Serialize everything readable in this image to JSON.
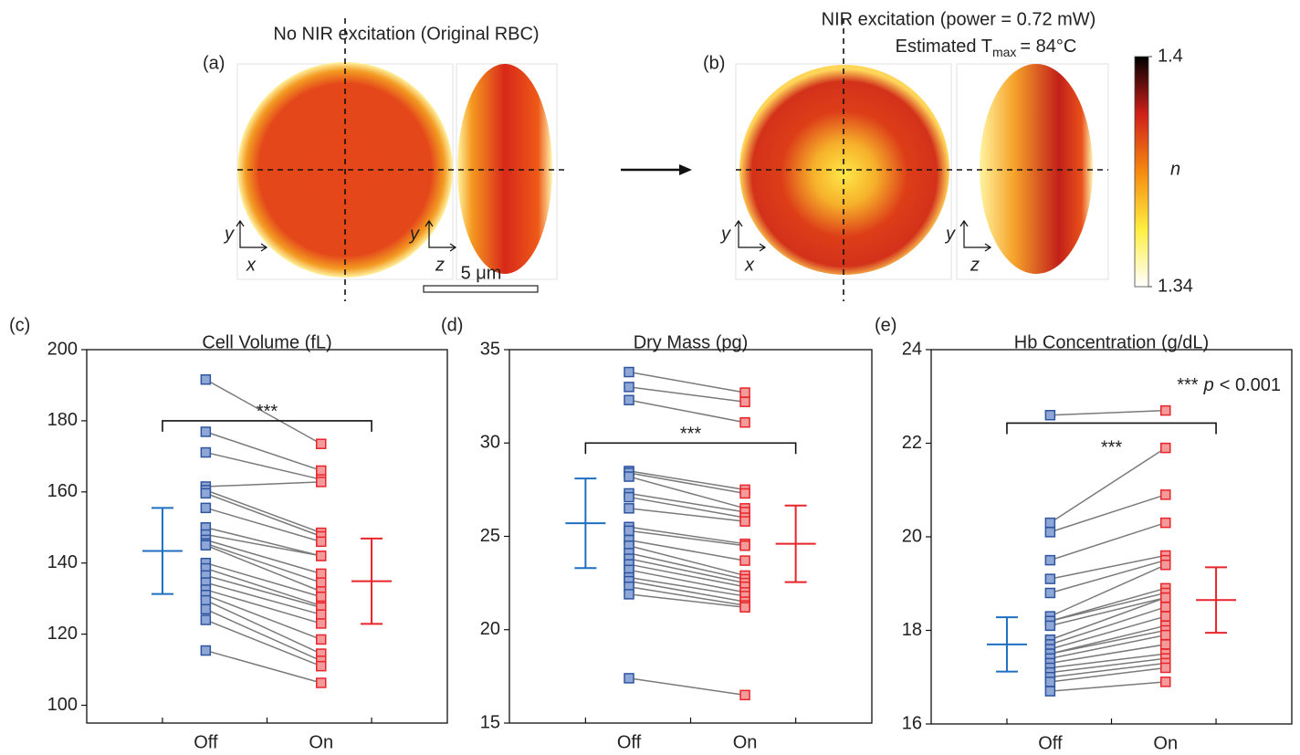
{
  "figure": {
    "panel_a": {
      "label": "(a)",
      "title": "No NIR excitation (Original RBC)",
      "front_axes": [
        "y",
        "x"
      ],
      "side_axes": [
        "y",
        "z"
      ],
      "scale_bar": "5 μm"
    },
    "panel_b": {
      "label": "(b)",
      "title": "NIR excitation (power = 0.72 mW)",
      "subtitle": [
        "Estimated T",
        "max",
        "= 84°C"
      ],
      "front_axes": [
        "y",
        "x"
      ],
      "side_axes": [
        "y",
        "z"
      ]
    },
    "colorbar": {
      "label": "n",
      "lim": [
        1.34,
        1.4
      ],
      "ticks": [
        1.34,
        1.4
      ]
    }
  },
  "chart_data": [
    {
      "type": "paired_scatter",
      "panel": "(c)",
      "title": "Cell Volume (fL)",
      "categories": [
        "Off",
        "On"
      ],
      "series": [
        {
          "color": "#8ea7d6",
          "edge": "#2f55a0",
          "bar_color": "#1f6fc0",
          "mean": 143.4,
          "sd": 12.1,
          "values": [
            191.6,
            176.9,
            171.1,
            161.5,
            160.5,
            159.6,
            155.5,
            150,
            148,
            146.5,
            145.5,
            145,
            140,
            138.5,
            136.5,
            134.5,
            132.5,
            131,
            129.5,
            127,
            124,
            115.4
          ]
        },
        {
          "color": "#f39a9a",
          "edge": "#e8252b",
          "bar_color": "#e8252b",
          "mean": 134.9,
          "sd": 12,
          "values": [
            173.5,
            166,
            163.5,
            162.8,
            148.5,
            147.5,
            146,
            142,
            142,
            137,
            134.5,
            132,
            130.5,
            128,
            127.5,
            125.5,
            123,
            118.5,
            114.5,
            112.5,
            111,
            106.3
          ]
        }
      ],
      "significance": {
        "label": "***",
        "level": 180
      },
      "ylim": [
        95,
        200
      ],
      "yticks": [
        100,
        120,
        140,
        160,
        180,
        200
      ]
    },
    {
      "type": "paired_scatter",
      "panel": "(d)",
      "title": "Dry Mass (pg)",
      "categories": [
        "Off",
        "On"
      ],
      "series": [
        {
          "color": "#8ea7d6",
          "edge": "#2f55a0",
          "bar_color": "#1f6fc0",
          "mean": 25.7,
          "sd": 2.4,
          "values": [
            33.8,
            33.0,
            32.3,
            28.5,
            28.4,
            28.2,
            27.3,
            27.1,
            26.5,
            25.5,
            25.3,
            24.8,
            24.5,
            24.1,
            23.8,
            23.5,
            23.2,
            22.8,
            22.6,
            22.3,
            21.9,
            17.4
          ]
        },
        {
          "color": "#f39a9a",
          "edge": "#e8252b",
          "bar_color": "#e8252b",
          "mean": 24.6,
          "sd": 2.05,
          "values": [
            32.7,
            32.2,
            31.1,
            27.5,
            27.3,
            26.5,
            26.3,
            26.0,
            25.8,
            24.6,
            24.5,
            23.7,
            22.9,
            22.7,
            22.5,
            22.3,
            22.0,
            21.8,
            21.5,
            21.3,
            21.2,
            16.5
          ]
        }
      ],
      "significance": {
        "label": "***",
        "level": 30
      },
      "ylim": [
        15,
        35
      ],
      "yticks": [
        15,
        20,
        25,
        30,
        35
      ]
    },
    {
      "type": "paired_scatter",
      "panel": "(e)",
      "title": "Hb Concentration (g/dL)",
      "categories": [
        "Off",
        "On"
      ],
      "series": [
        {
          "color": "#8ea7d6",
          "edge": "#2f55a0",
          "bar_color": "#1f6fc0",
          "mean": 17.7,
          "sd": 0.58,
          "values": [
            22.6,
            20.3,
            20.1,
            19.5,
            19.1,
            18.8,
            18.3,
            18.2,
            18.2,
            18.1,
            17.8,
            17.7,
            17.6,
            17.5,
            17.5,
            17.4,
            17.3,
            17.2,
            17.1,
            17.0,
            16.9,
            16.7
          ]
        },
        {
          "color": "#f39a9a",
          "edge": "#e8252b",
          "bar_color": "#e8252b",
          "mean": 18.65,
          "sd": 0.7,
          "values": [
            22.7,
            21.9,
            20.9,
            20.3,
            19.6,
            19.5,
            19.4,
            18.9,
            18.8,
            18.7,
            18.7,
            18.5,
            18.3,
            18.1,
            18.0,
            17.9,
            17.7,
            17.5,
            17.4,
            17.3,
            17.2,
            16.9
          ]
        }
      ],
      "significance": {
        "label": "***",
        "level": 22.43
      },
      "annotation": [
        "***",
        "p",
        "< 0.001"
      ],
      "ylim": [
        16,
        24
      ],
      "yticks": [
        16,
        18,
        20,
        22,
        24
      ]
    }
  ]
}
